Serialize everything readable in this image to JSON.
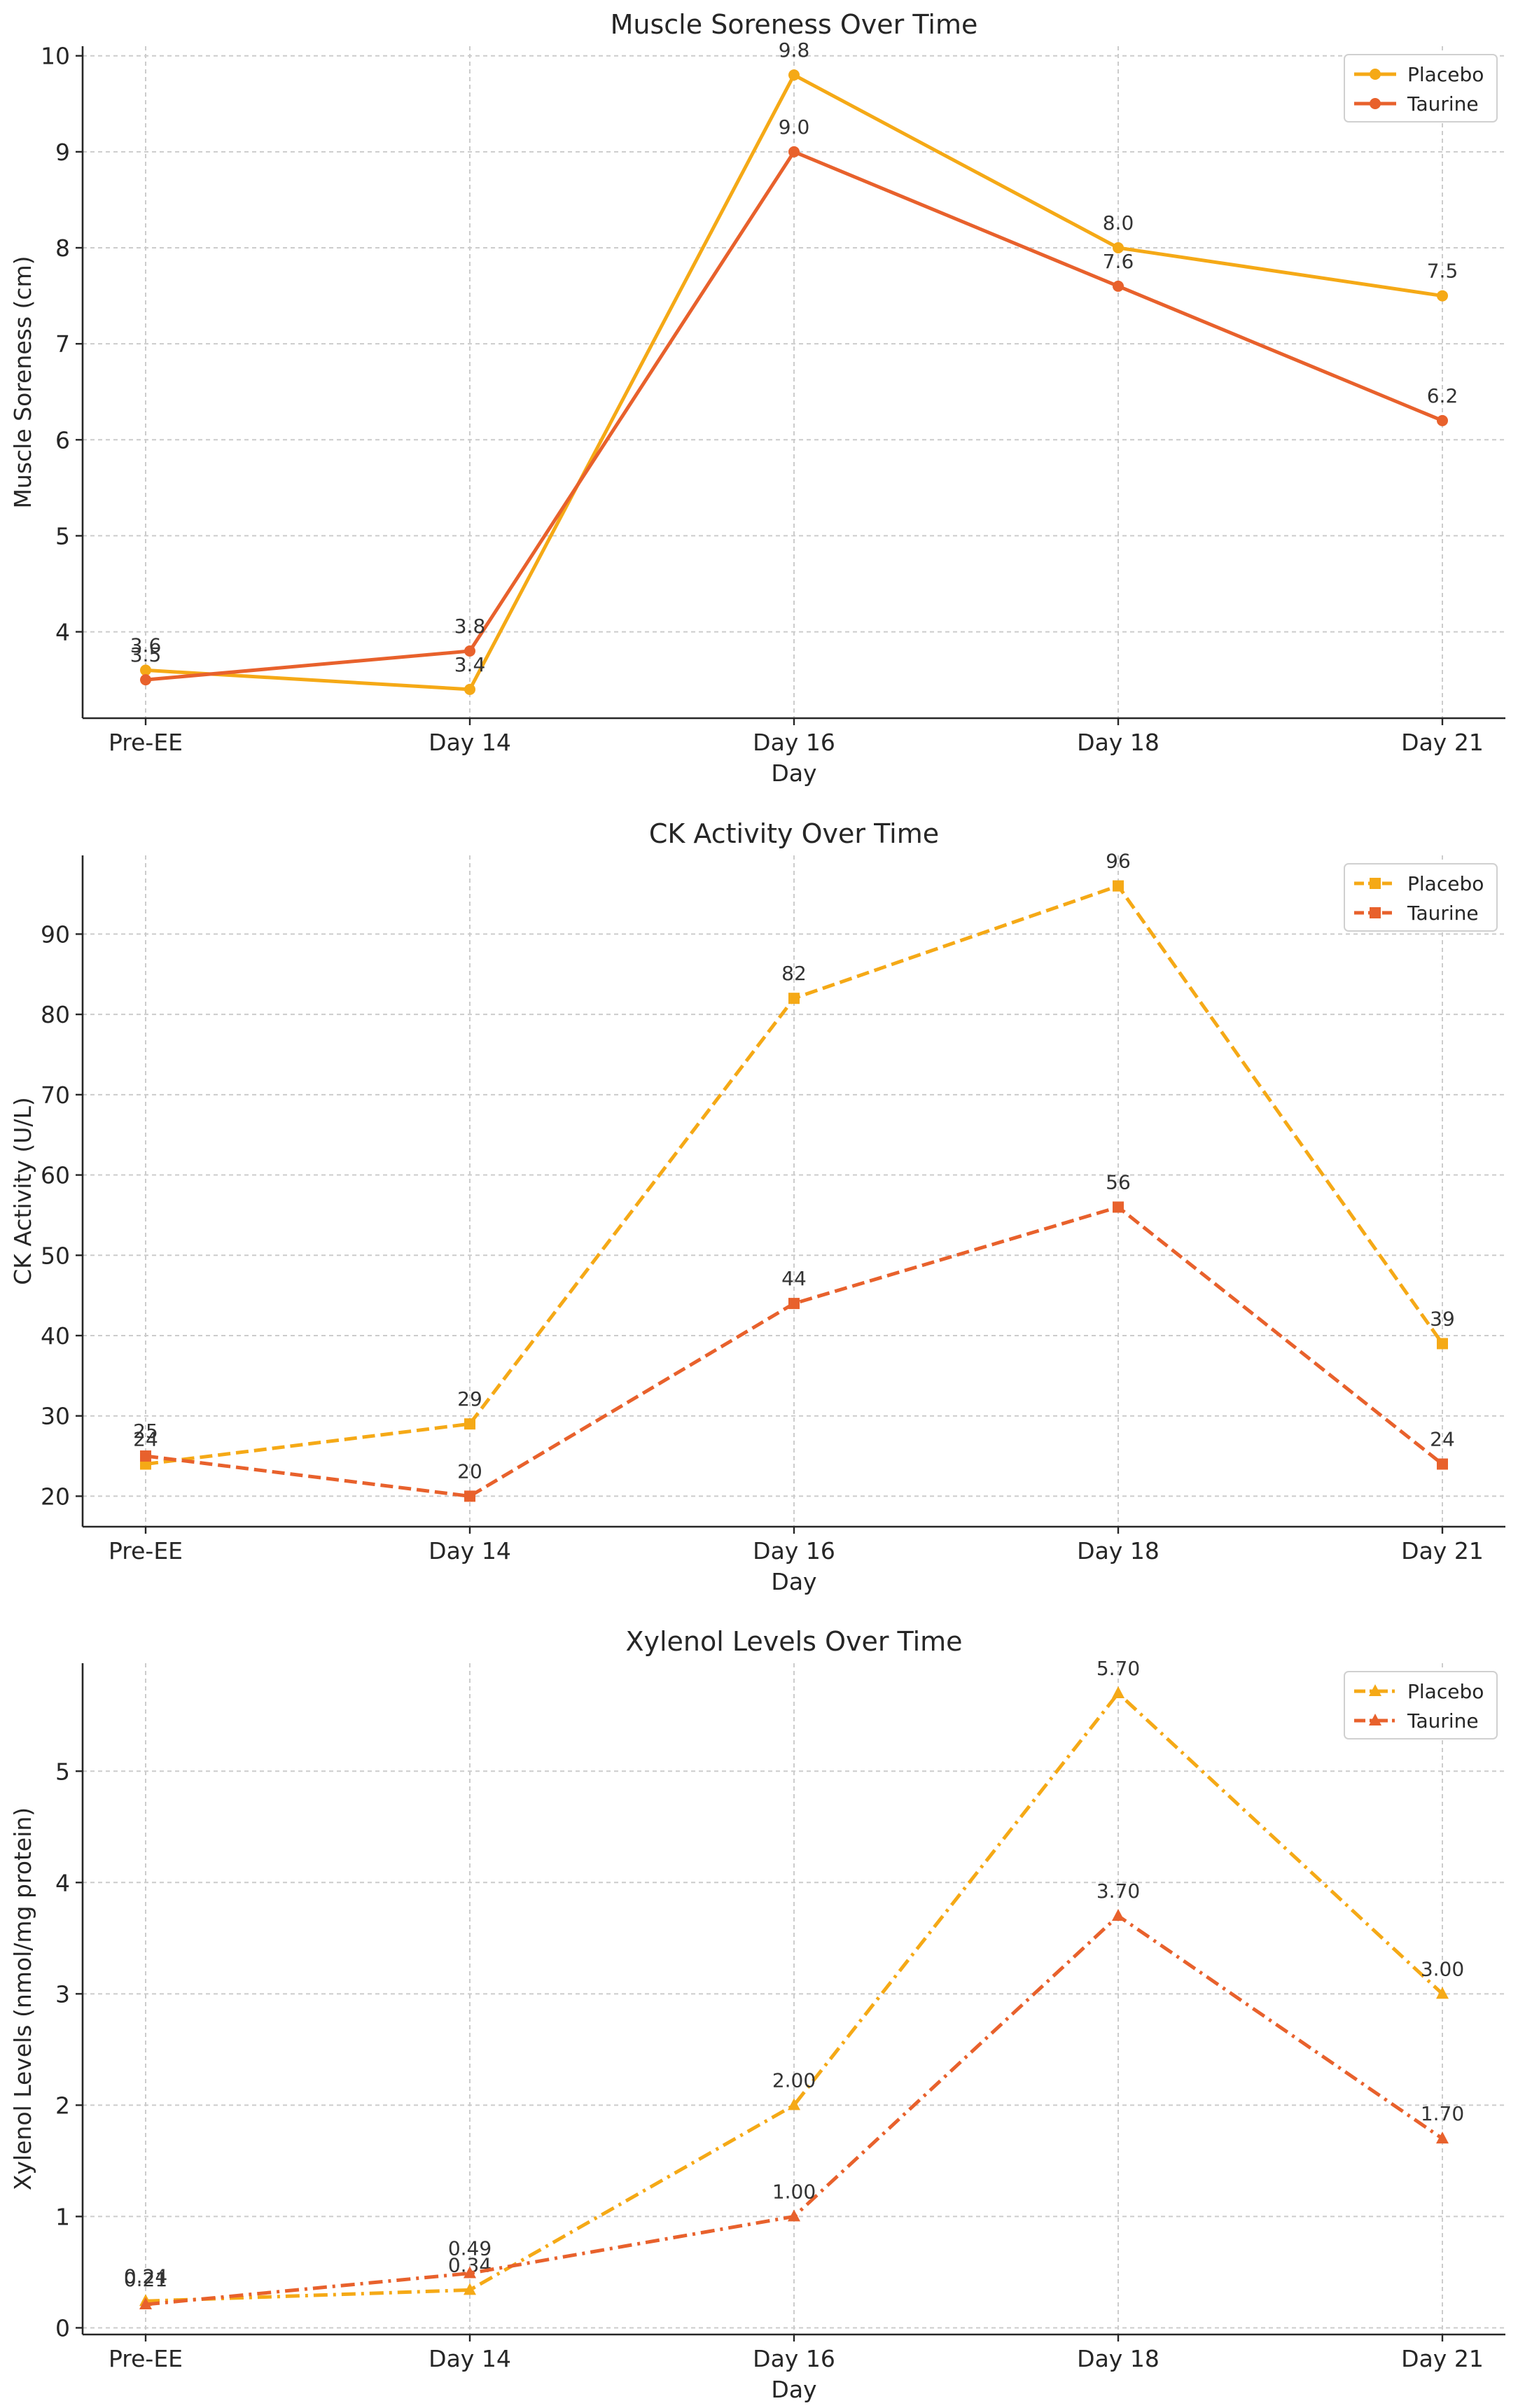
{
  "colors": {
    "placebo": "#F5A916",
    "taurine": "#E8612C"
  },
  "chart_data": [
    {
      "type": "line",
      "title": "Muscle Soreness Over Time",
      "xlabel": "Day",
      "ylabel": "Muscle Soreness (cm)",
      "categories": [
        "Pre-EE",
        "Day 14",
        "Day 16",
        "Day 18",
        "Day 21"
      ],
      "ylim": [
        3.1,
        10.1
      ],
      "yticks": [
        4,
        5,
        6,
        7,
        8,
        9,
        10
      ],
      "ytick_labels": [
        "4",
        "5",
        "6",
        "7",
        "8",
        "9",
        "10"
      ],
      "grid": true,
      "legend": "top-right",
      "marker": "circle",
      "linestyle": "solid",
      "series": [
        {
          "name": "Placebo",
          "values": [
            3.6,
            3.4,
            9.8,
            8.0,
            7.5
          ],
          "labels": [
            "3.6",
            "3.4",
            "9.8",
            "8.0",
            "7.5"
          ]
        },
        {
          "name": "Taurine",
          "values": [
            3.5,
            3.8,
            9.0,
            7.6,
            6.2
          ],
          "labels": [
            "3.5",
            "3.8",
            "9.0",
            "7.6",
            "6.2"
          ]
        }
      ]
    },
    {
      "type": "line",
      "title": "CK Activity Over Time",
      "xlabel": "Day",
      "ylabel": "CK Activity (U/L)",
      "categories": [
        "Pre-EE",
        "Day 14",
        "Day 16",
        "Day 18",
        "Day 21"
      ],
      "ylim": [
        16.2,
        99.8
      ],
      "yticks": [
        20,
        30,
        40,
        50,
        60,
        70,
        80,
        90
      ],
      "ytick_labels": [
        "20",
        "30",
        "40",
        "50",
        "60",
        "70",
        "80",
        "90"
      ],
      "grid": true,
      "legend": "top-right",
      "marker": "square",
      "linestyle": "dashed",
      "series": [
        {
          "name": "Placebo",
          "values": [
            24,
            29,
            82,
            96,
            39
          ],
          "labels": [
            "24",
            "29",
            "82",
            "96",
            "39"
          ]
        },
        {
          "name": "Taurine",
          "values": [
            25,
            20,
            44,
            56,
            24
          ],
          "labels": [
            "25",
            "20",
            "44",
            "56",
            "24"
          ]
        }
      ]
    },
    {
      "type": "line",
      "title": "Xylenol Levels Over Time",
      "xlabel": "Day",
      "ylabel": "Xylenol Levels (nmol/mg protein)",
      "categories": [
        "Pre-EE",
        "Day 14",
        "Day 16",
        "Day 18",
        "Day 21"
      ],
      "ylim": [
        -0.06,
        5.97
      ],
      "yticks": [
        0,
        1,
        2,
        3,
        4,
        5
      ],
      "ytick_labels": [
        "0",
        "1",
        "2",
        "3",
        "4",
        "5"
      ],
      "grid": true,
      "legend": "top-right",
      "marker": "triangle",
      "linestyle": "dashdot",
      "series": [
        {
          "name": "Placebo",
          "values": [
            0.24,
            0.34,
            2.0,
            5.7,
            3.0
          ],
          "labels": [
            "0.24",
            "0.34",
            "2.00",
            "5.70",
            "3.00"
          ]
        },
        {
          "name": "Taurine",
          "values": [
            0.21,
            0.49,
            1.0,
            3.7,
            1.7
          ],
          "labels": [
            "0.21",
            "0.49",
            "1.00",
            "3.70",
            "1.70"
          ]
        }
      ]
    }
  ]
}
